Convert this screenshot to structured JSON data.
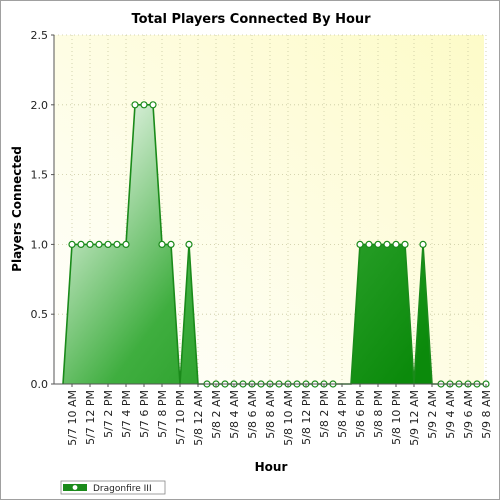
{
  "chart_data": {
    "type": "area",
    "title": "Total Players Connected By Hour",
    "xlabel": "Hour",
    "ylabel": "Players Connected",
    "ylim": [
      0,
      2.5
    ],
    "yticks": [
      "0.0",
      "0.5",
      "1.0",
      "1.5",
      "2.0",
      "2.5"
    ],
    "grid": true,
    "legend_position": "bottom-left",
    "x": [
      "5/7 9 AM",
      "5/7 10 AM",
      "5/7 11 AM",
      "5/7 12 PM",
      "5/7 1 PM",
      "5/7 2 PM",
      "5/7 3 PM",
      "5/7 4 PM",
      "5/7 5 PM",
      "5/7 6 PM",
      "5/7 7 PM",
      "5/7 8 PM",
      "5/7 9 PM",
      "5/7 10 PM",
      "5/7 11 PM",
      "5/8 12 AM",
      "5/8 1 AM",
      "5/8 2 AM",
      "5/8 3 AM",
      "5/8 4 AM",
      "5/8 5 AM",
      "5/8 6 AM",
      "5/8 7 AM",
      "5/8 8 AM",
      "5/8 9 AM",
      "5/8 10 AM",
      "5/8 11 AM",
      "5/8 12 PM",
      "5/8 1 PM",
      "5/8 2 PM",
      "5/8 3 PM",
      "5/8 4 PM",
      "5/8 5 PM",
      "5/8 6 PM",
      "5/8 7 PM",
      "5/8 8 PM",
      "5/8 9 PM",
      "5/8 10 PM",
      "5/8 11 PM",
      "5/9 12 AM",
      "5/9 1 AM",
      "5/9 2 AM",
      "5/9 3 AM",
      "5/9 4 AM",
      "5/9 5 AM",
      "5/9 6 AM",
      "5/9 7 AM",
      "5/9 8 AM"
    ],
    "x_tick_labels": [
      "5/7 10 AM",
      "5/7 12 PM",
      "5/7 2 PM",
      "5/7 4 PM",
      "5/7 6 PM",
      "5/7 8 PM",
      "5/7 10 PM",
      "5/8 12 AM",
      "5/8 2 AM",
      "5/8 4 AM",
      "5/8 6 AM",
      "5/8 8 AM",
      "5/8 10 AM",
      "5/8 12 PM",
      "5/8 2 PM",
      "5/8 4 PM",
      "5/8 6 PM",
      "5/8 8 PM",
      "5/8 10 PM",
      "5/9 12 AM",
      "5/9 2 AM",
      "5/9 4 AM",
      "5/9 6 AM",
      "5/9 8 AM"
    ],
    "series": [
      {
        "name": "Dragonfire III",
        "color": "#1a8a1a",
        "values": [
          0,
          1,
          1,
          1,
          1,
          1,
          1,
          1,
          2,
          2,
          2,
          1,
          1,
          0,
          1,
          0,
          0,
          0,
          0,
          0,
          0,
          0,
          0,
          0,
          0,
          0,
          0,
          0,
          0,
          0,
          0,
          0,
          0,
          1,
          1,
          1,
          1,
          1,
          1,
          0,
          1,
          0,
          0,
          0,
          0,
          0,
          0,
          0
        ],
        "markers": [
          false,
          true,
          true,
          true,
          true,
          true,
          true,
          true,
          true,
          true,
          true,
          true,
          true,
          false,
          true,
          false,
          true,
          true,
          true,
          true,
          true,
          true,
          true,
          true,
          true,
          true,
          true,
          true,
          true,
          true,
          true,
          false,
          false,
          true,
          true,
          true,
          true,
          true,
          true,
          false,
          true,
          false,
          true,
          true,
          true,
          true,
          true,
          true
        ]
      }
    ]
  }
}
